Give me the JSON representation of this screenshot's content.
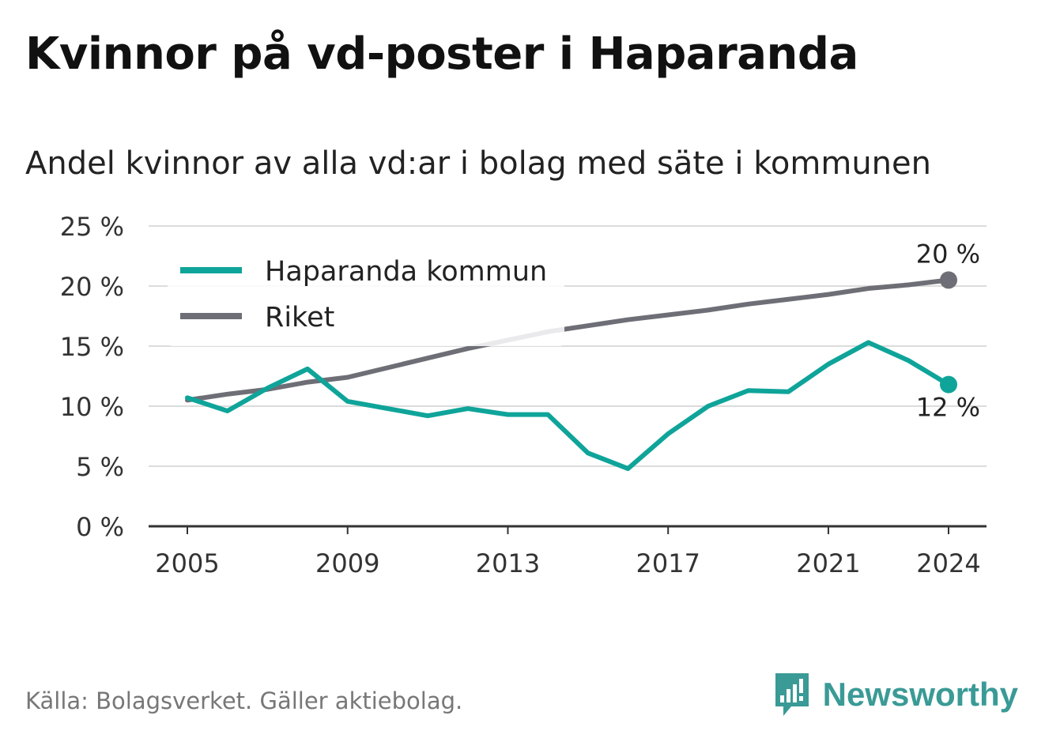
{
  "title": "Kvinnor på vd-poster i Haparanda",
  "subtitle": "Andel kvinnor av alla vd:ar i bolag med säte i kommunen",
  "source": "Källa: Bolagsverket. Gäller aktiebolag.",
  "brand": {
    "name": "Newsworthy",
    "icon": "newsworthy-logo-icon",
    "color": "#3a9a96"
  },
  "chart_data": {
    "type": "line",
    "x": [
      2005,
      2006,
      2007,
      2008,
      2009,
      2010,
      2011,
      2012,
      2013,
      2014,
      2015,
      2016,
      2017,
      2018,
      2019,
      2020,
      2021,
      2022,
      2023,
      2024
    ],
    "xticks": [
      2005,
      2009,
      2013,
      2017,
      2021,
      2024
    ],
    "xtick_labels": [
      "2005",
      "2009",
      "2013",
      "2017",
      "2021",
      "2024"
    ],
    "yticks": [
      0,
      5,
      10,
      15,
      20,
      25
    ],
    "ytick_labels": [
      "0 %",
      "5 %",
      "10 %",
      "15 %",
      "20 %",
      "25 %"
    ],
    "ylim": [
      0,
      25
    ],
    "xlim": [
      2005,
      2024
    ],
    "grid": true,
    "legend_position": "top-left",
    "series": [
      {
        "name": "Haparanda kommun",
        "color": "#0fa49a",
        "values": [
          10.7,
          9.6,
          11.5,
          13.1,
          10.4,
          9.8,
          9.2,
          9.8,
          9.3,
          9.3,
          6.1,
          4.8,
          7.7,
          10.0,
          11.3,
          11.2,
          13.5,
          15.3,
          13.8,
          11.8
        ],
        "end_label": "12 %"
      },
      {
        "name": "Riket",
        "color": "#6e6e76",
        "values": [
          10.5,
          11.0,
          11.4,
          12.0,
          12.4,
          13.2,
          14.0,
          14.8,
          15.5,
          16.2,
          16.7,
          17.2,
          17.6,
          18.0,
          18.5,
          18.9,
          19.3,
          19.8,
          20.1,
          20.5
        ],
        "end_label": "20 %"
      }
    ]
  }
}
